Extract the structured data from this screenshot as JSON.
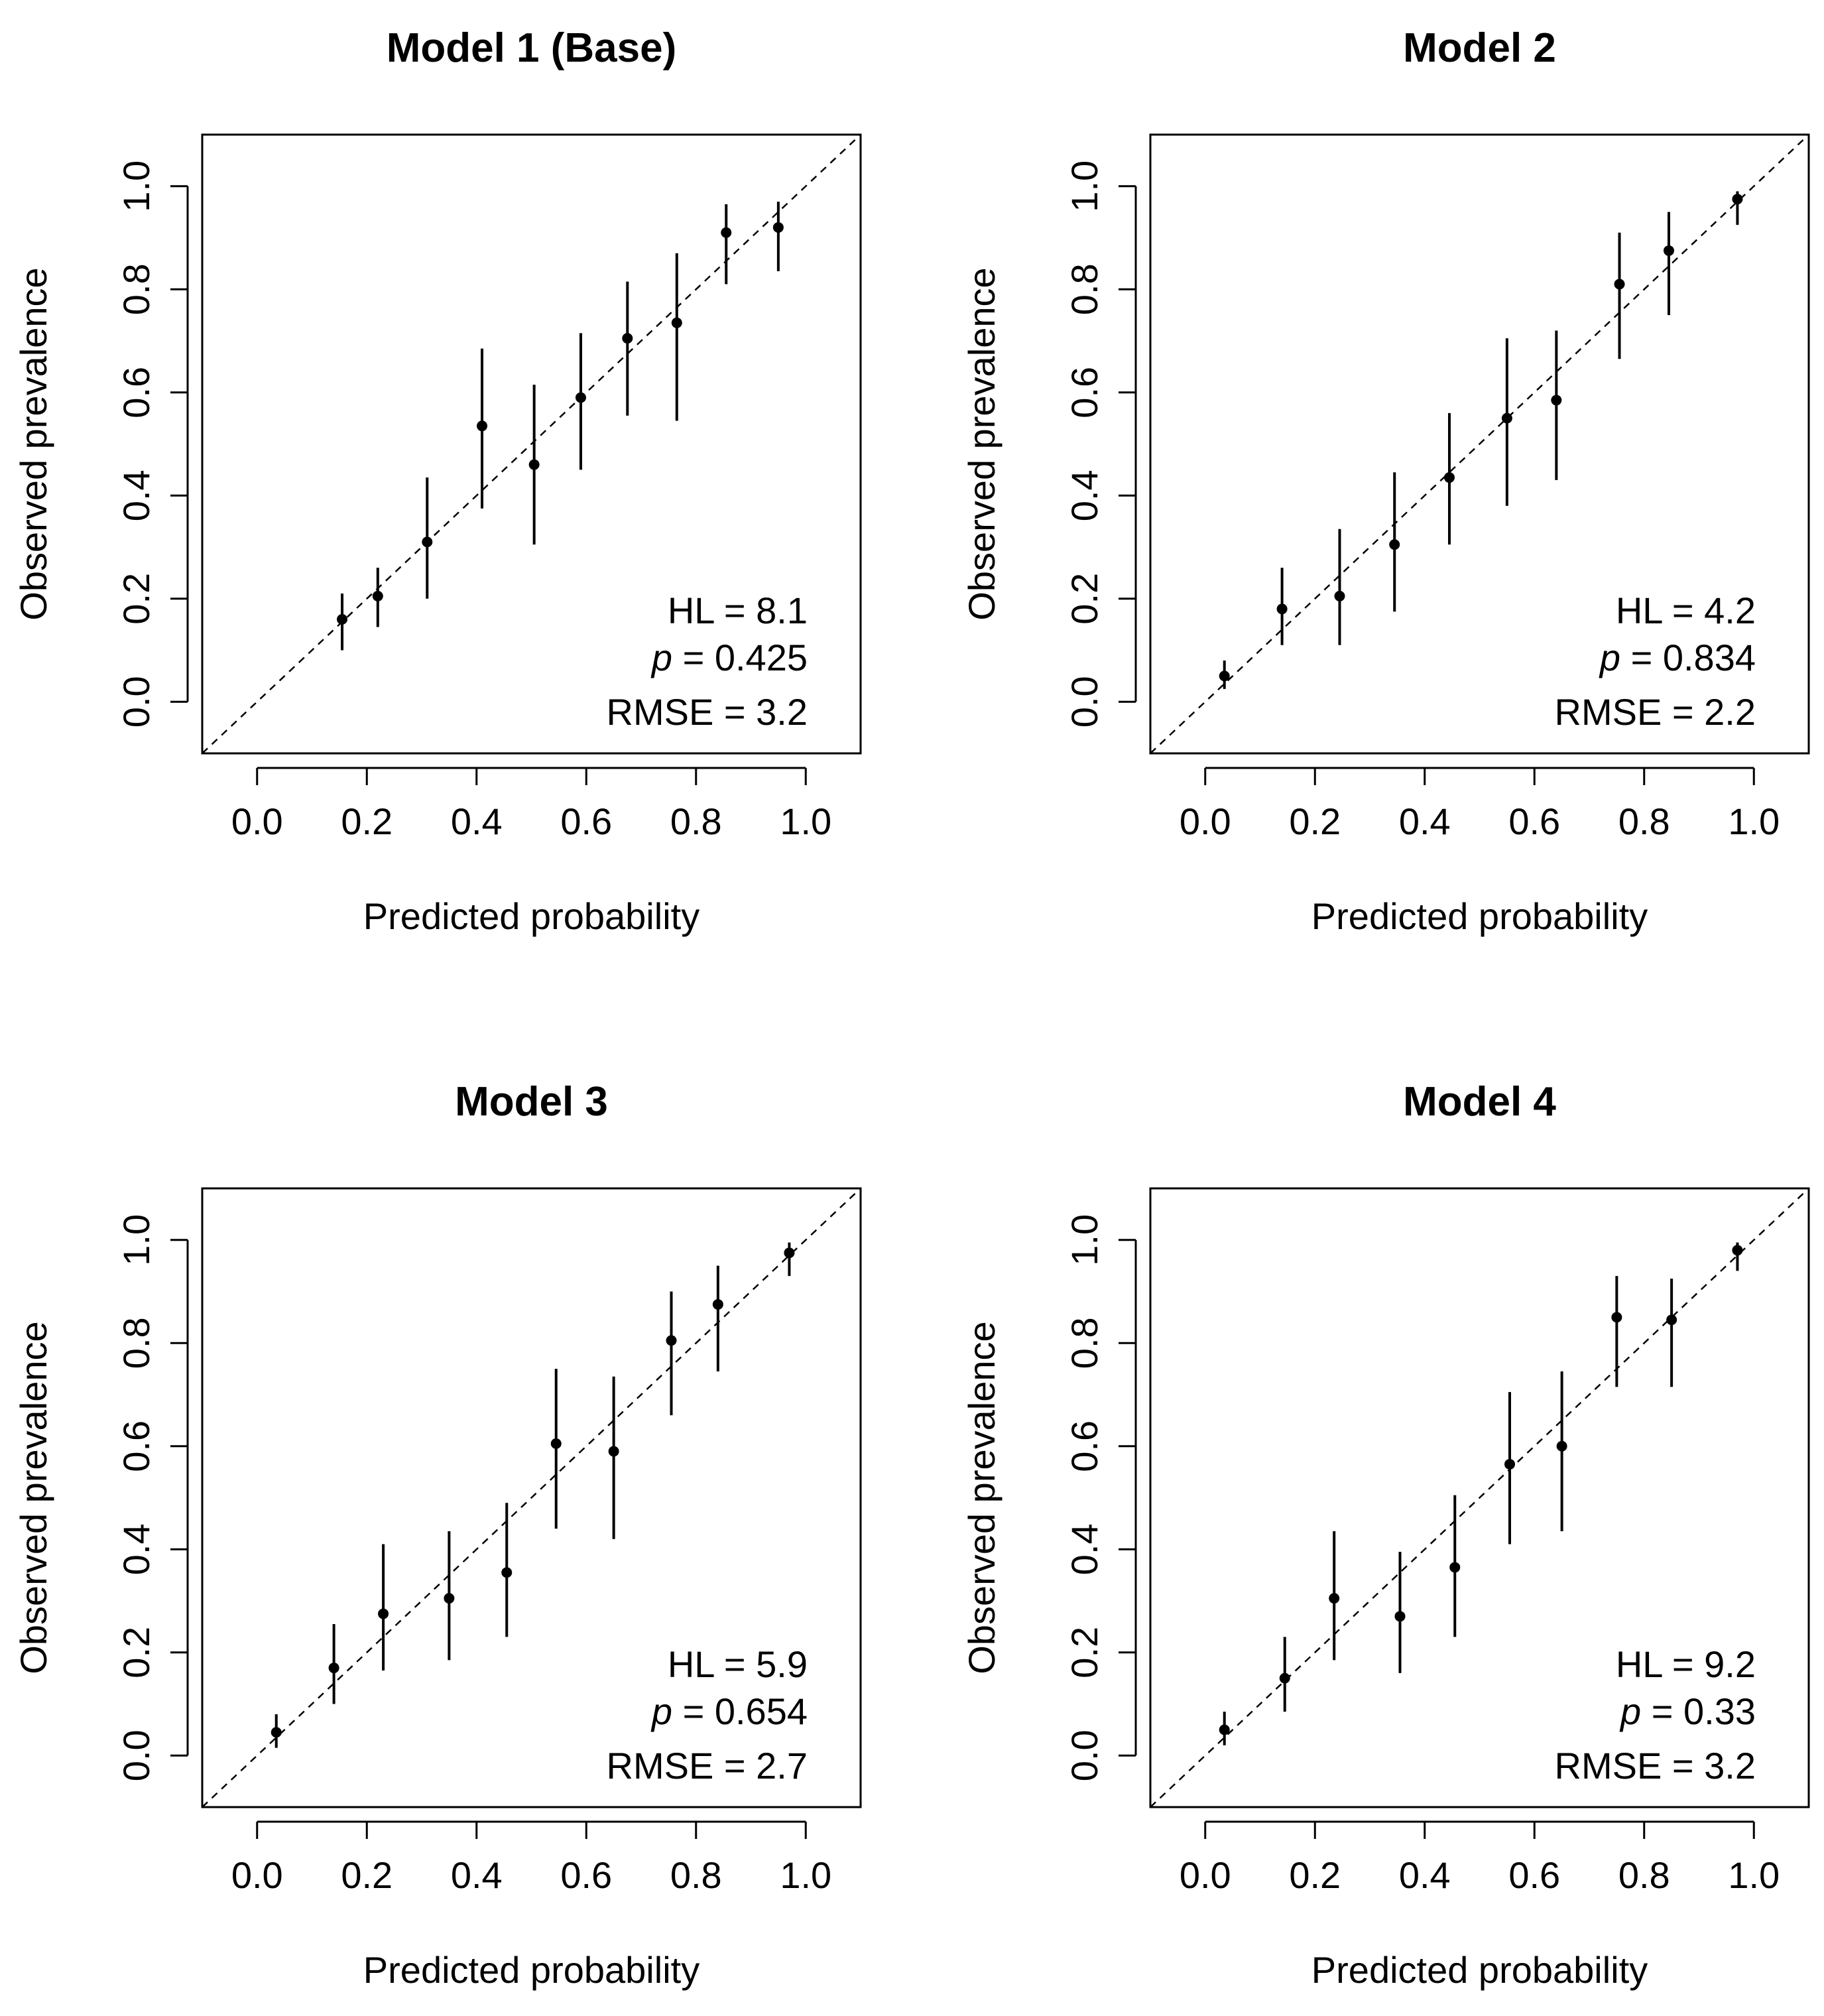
{
  "chart_data": [
    {
      "type": "scatter",
      "title": "Model 1 (Base)",
      "xlabel": "Predicted probability",
      "ylabel": "Observed prevalence",
      "xlim": [
        -0.1,
        1.1
      ],
      "ylim": [
        -0.1,
        1.1
      ],
      "xticks": [
        "0.0",
        "0.2",
        "0.4",
        "0.6",
        "0.8",
        "1.0"
      ],
      "yticks": [
        "0.0",
        "0.2",
        "0.4",
        "0.6",
        "0.8",
        "1.0"
      ],
      "reference_line": "y = x (dashed)",
      "points": [
        {
          "x": 0.155,
          "y": 0.16,
          "lo": 0.1,
          "hi": 0.21
        },
        {
          "x": 0.22,
          "y": 0.205,
          "lo": 0.145,
          "hi": 0.26
        },
        {
          "x": 0.31,
          "y": 0.31,
          "lo": 0.2,
          "hi": 0.435
        },
        {
          "x": 0.41,
          "y": 0.535,
          "lo": 0.375,
          "hi": 0.685
        },
        {
          "x": 0.505,
          "y": 0.46,
          "lo": 0.305,
          "hi": 0.615
        },
        {
          "x": 0.59,
          "y": 0.59,
          "lo": 0.45,
          "hi": 0.715
        },
        {
          "x": 0.675,
          "y": 0.705,
          "lo": 0.555,
          "hi": 0.815
        },
        {
          "x": 0.765,
          "y": 0.735,
          "lo": 0.545,
          "hi": 0.87
        },
        {
          "x": 0.855,
          "y": 0.91,
          "lo": 0.81,
          "hi": 0.965
        },
        {
          "x": 0.95,
          "y": 0.92,
          "lo": 0.835,
          "hi": 0.97
        }
      ],
      "stats": {
        "hl_label": "HL = 8.1",
        "p_symbol": "p",
        "p_value": " = 0.425",
        "rmse_label": "RMSE = 3.2"
      }
    },
    {
      "type": "scatter",
      "title": "Model 2",
      "xlabel": "Predicted probability",
      "ylabel": "Observed prevalence",
      "xlim": [
        -0.1,
        1.1
      ],
      "ylim": [
        -0.1,
        1.1
      ],
      "xticks": [
        "0.0",
        "0.2",
        "0.4",
        "0.6",
        "0.8",
        "1.0"
      ],
      "yticks": [
        "0.0",
        "0.2",
        "0.4",
        "0.6",
        "0.8",
        "1.0"
      ],
      "reference_line": "y = x (dashed)",
      "points": [
        {
          "x": 0.035,
          "y": 0.05,
          "lo": 0.025,
          "hi": 0.08
        },
        {
          "x": 0.14,
          "y": 0.18,
          "lo": 0.11,
          "hi": 0.26
        },
        {
          "x": 0.245,
          "y": 0.205,
          "lo": 0.11,
          "hi": 0.335
        },
        {
          "x": 0.345,
          "y": 0.305,
          "lo": 0.175,
          "hi": 0.445
        },
        {
          "x": 0.445,
          "y": 0.435,
          "lo": 0.305,
          "hi": 0.56
        },
        {
          "x": 0.55,
          "y": 0.55,
          "lo": 0.38,
          "hi": 0.705
        },
        {
          "x": 0.64,
          "y": 0.585,
          "lo": 0.43,
          "hi": 0.72
        },
        {
          "x": 0.755,
          "y": 0.81,
          "lo": 0.665,
          "hi": 0.91
        },
        {
          "x": 0.845,
          "y": 0.875,
          "lo": 0.75,
          "hi": 0.95
        },
        {
          "x": 0.97,
          "y": 0.975,
          "lo": 0.925,
          "hi": 0.99
        }
      ],
      "stats": {
        "hl_label": "HL = 4.2",
        "p_symbol": "p",
        "p_value": " = 0.834",
        "rmse_label": "RMSE = 2.2"
      }
    },
    {
      "type": "scatter",
      "title": "Model 3",
      "xlabel": "Predicted probability",
      "ylabel": "Observed prevalence",
      "xlim": [
        -0.1,
        1.1
      ],
      "ylim": [
        -0.1,
        1.1
      ],
      "xticks": [
        "0.0",
        "0.2",
        "0.4",
        "0.6",
        "0.8",
        "1.0"
      ],
      "yticks": [
        "0.0",
        "0.2",
        "0.4",
        "0.6",
        "0.8",
        "1.0"
      ],
      "reference_line": "y = x (dashed)",
      "points": [
        {
          "x": 0.035,
          "y": 0.045,
          "lo": 0.015,
          "hi": 0.08
        },
        {
          "x": 0.14,
          "y": 0.17,
          "lo": 0.1,
          "hi": 0.255
        },
        {
          "x": 0.23,
          "y": 0.275,
          "lo": 0.165,
          "hi": 0.41
        },
        {
          "x": 0.35,
          "y": 0.305,
          "lo": 0.185,
          "hi": 0.435
        },
        {
          "x": 0.455,
          "y": 0.355,
          "lo": 0.23,
          "hi": 0.49
        },
        {
          "x": 0.545,
          "y": 0.605,
          "lo": 0.44,
          "hi": 0.75
        },
        {
          "x": 0.65,
          "y": 0.59,
          "lo": 0.42,
          "hi": 0.735
        },
        {
          "x": 0.755,
          "y": 0.805,
          "lo": 0.66,
          "hi": 0.9
        },
        {
          "x": 0.84,
          "y": 0.875,
          "lo": 0.745,
          "hi": 0.95
        },
        {
          "x": 0.97,
          "y": 0.975,
          "lo": 0.93,
          "hi": 0.995
        }
      ],
      "stats": {
        "hl_label": "HL = 5.9",
        "p_symbol": "p",
        "p_value": " = 0.654",
        "rmse_label": "RMSE = 2.7"
      }
    },
    {
      "type": "scatter",
      "title": "Model 4",
      "xlabel": "Predicted probability",
      "ylabel": "Observed prevalence",
      "xlim": [
        -0.1,
        1.1
      ],
      "ylim": [
        -0.1,
        1.1
      ],
      "xticks": [
        "0.0",
        "0.2",
        "0.4",
        "0.6",
        "0.8",
        "1.0"
      ],
      "yticks": [
        "0.0",
        "0.2",
        "0.4",
        "0.6",
        "0.8",
        "1.0"
      ],
      "reference_line": "y = x (dashed)",
      "points": [
        {
          "x": 0.035,
          "y": 0.05,
          "lo": 0.02,
          "hi": 0.085
        },
        {
          "x": 0.145,
          "y": 0.15,
          "lo": 0.085,
          "hi": 0.23
        },
        {
          "x": 0.235,
          "y": 0.305,
          "lo": 0.185,
          "hi": 0.435
        },
        {
          "x": 0.355,
          "y": 0.27,
          "lo": 0.16,
          "hi": 0.395
        },
        {
          "x": 0.455,
          "y": 0.365,
          "lo": 0.23,
          "hi": 0.505
        },
        {
          "x": 0.555,
          "y": 0.565,
          "lo": 0.41,
          "hi": 0.705
        },
        {
          "x": 0.65,
          "y": 0.6,
          "lo": 0.435,
          "hi": 0.745
        },
        {
          "x": 0.75,
          "y": 0.85,
          "lo": 0.715,
          "hi": 0.93
        },
        {
          "x": 0.85,
          "y": 0.845,
          "lo": 0.715,
          "hi": 0.925
        },
        {
          "x": 0.97,
          "y": 0.98,
          "lo": 0.94,
          "hi": 0.995
        }
      ],
      "stats": {
        "hl_label": "HL = 9.2",
        "p_symbol": "p",
        "p_value": " = 0.33",
        "rmse_label": "RMSE = 3.2"
      }
    }
  ]
}
